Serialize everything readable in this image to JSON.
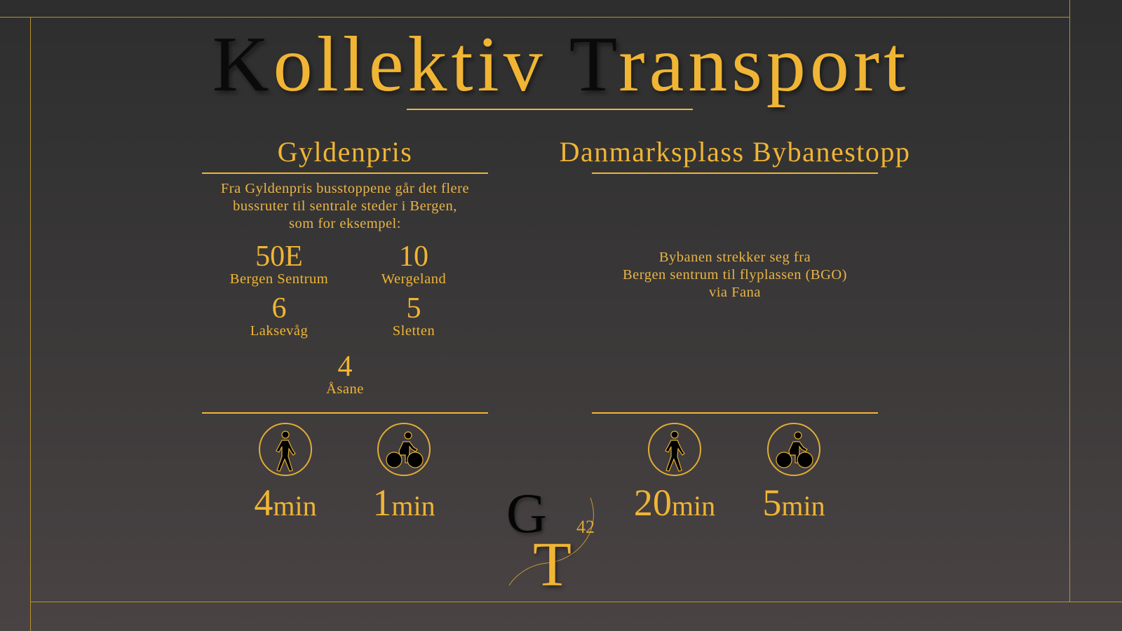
{
  "title": {
    "part1_initial": "K",
    "part1_rest": "ollektiv",
    "part2_initial": "T",
    "part2_rest": "ransport"
  },
  "left": {
    "heading": "Gyldenpris",
    "description": [
      "Fra Gyldenpris busstoppene går det flere",
      "bussruter til sentrale steder i Bergen,",
      "som for eksempel:"
    ],
    "routes": [
      {
        "number": "50E",
        "destination": "Bergen Sentrum"
      },
      {
        "number": "10",
        "destination": "Wergeland"
      },
      {
        "number": "6",
        "destination": "Laksevåg"
      },
      {
        "number": "5",
        "destination": "Sletten"
      },
      {
        "number": "4",
        "destination": "Åsane"
      }
    ],
    "travel": [
      {
        "icon": "walking-person-icon",
        "value": "4",
        "unit": "min"
      },
      {
        "icon": "bicycle-icon",
        "value": "1",
        "unit": "min"
      }
    ]
  },
  "right": {
    "heading": "Danmarksplass Bybanestopp",
    "description": [
      "Bybanen strekker seg fra",
      "Bergen sentrum til flyplassen (BGO)",
      "via Fana"
    ],
    "travel": [
      {
        "icon": "walking-person-icon",
        "value": "20",
        "unit": "min"
      },
      {
        "icon": "bicycle-icon",
        "value": "5",
        "unit": "min"
      }
    ]
  },
  "logo": {
    "letters": "GT",
    "superscript": "42"
  },
  "colors": {
    "accent": "#f0b534",
    "frame": "#b8912e",
    "dark": "#0a0a0a"
  }
}
